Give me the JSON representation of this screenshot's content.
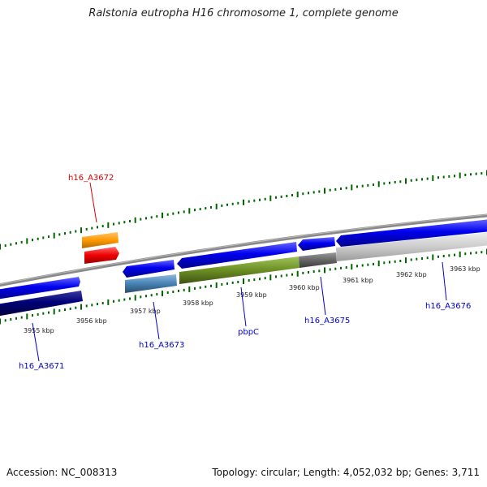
{
  "title": "Ralstonia eutropha H16 chromosome 1, complete genome",
  "footer": {
    "accession": "Accession: NC_008313",
    "topology": "Topology: circular; Length: 4,052,032 bp; Genes: 3,711"
  },
  "ruler_labels": [
    "3955 kbp",
    "3956 kbp",
    "3957 kbp",
    "3958 kbp",
    "3959 kbp",
    "3960 kbp",
    "3961 kbp",
    "3962 kbp",
    "3963 kbp"
  ],
  "gene_labels": [
    {
      "text": "h16_A3672",
      "color": "#dd0000"
    },
    {
      "text": "h16_A3671",
      "color": "#0000cc"
    },
    {
      "text": "h16_A3673",
      "color": "#0000cc"
    },
    {
      "text": "pbpC",
      "color": "#0000cc"
    },
    {
      "text": "h16_A3675",
      "color": "#0000cc"
    },
    {
      "text": "h16_A3676",
      "color": "#0000cc"
    }
  ],
  "colors": {
    "gene_blue": "#0000ee",
    "gene_navy": "#000077",
    "gene_steel": "#4682b4",
    "gene_olive": "#6b8e23",
    "gene_orange": "#ff9900",
    "gene_red": "#ee0000",
    "gene_grey": "#666666",
    "gene_lightgrey": "#cccccc",
    "tick_green": "#006600",
    "backbone": "#888888"
  }
}
